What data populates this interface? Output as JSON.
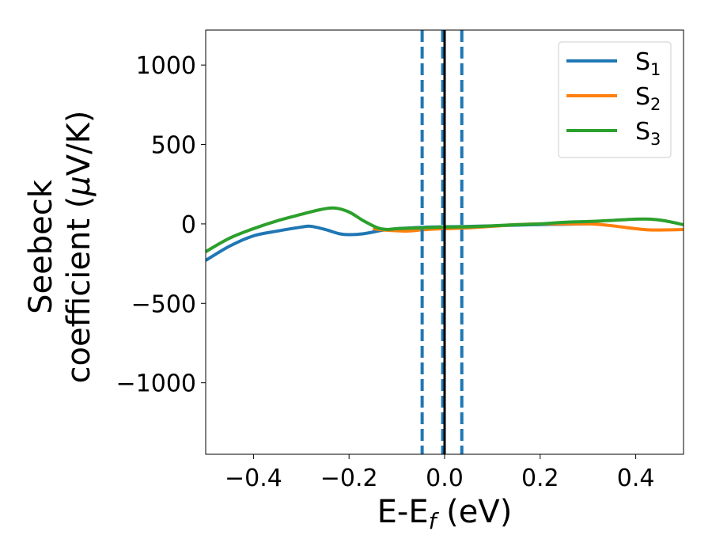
{
  "chart_data": {
    "type": "line",
    "xlabel": "E-E",
    "xlabel_sub": "f",
    "xlabel_unit": " (eV)",
    "ylabel_line1": "Seebeck",
    "ylabel_line2": "coefficient  (",
    "ylabel_mu": "μ",
    "ylabel_unit": "V/K)",
    "xlim": [
      -0.5,
      0.5
    ],
    "ylim": [
      -1450,
      1220
    ],
    "x_ticks": [
      -0.4,
      -0.2,
      0.0,
      0.2,
      0.4
    ],
    "x_tick_labels": [
      "−0.4",
      "−0.2",
      "0.0",
      "0.2",
      "0.4"
    ],
    "y_ticks": [
      1000,
      500,
      0,
      -500,
      -1000
    ],
    "y_tick_labels": [
      "1000",
      "500",
      "0",
      "−500",
      "−1000"
    ],
    "grid": false,
    "legend_position": "top-right",
    "series": [
      {
        "name": "S",
        "name_sub": "1",
        "color": "#1f77b4",
        "x": [
          -0.5,
          -0.45,
          -0.4,
          -0.35,
          -0.3,
          -0.28,
          -0.25,
          -0.22,
          -0.2,
          -0.17,
          -0.13,
          -0.1,
          -0.05,
          0.0,
          0.05,
          0.1,
          0.15,
          0.2,
          0.25,
          0.3
        ],
        "y": [
          -230,
          -140,
          -75,
          -45,
          -20,
          -15,
          -35,
          -62,
          -68,
          -62,
          -40,
          -30,
          -22,
          -18,
          -16,
          -12,
          -8,
          -4,
          -2,
          0
        ]
      },
      {
        "name": "S",
        "name_sub": "2",
        "color": "#ff7f0e",
        "x": [
          -0.15,
          -0.12,
          -0.08,
          -0.05,
          -0.02,
          0.0,
          0.05,
          0.1,
          0.15,
          0.2,
          0.25,
          0.3,
          0.33,
          0.36,
          0.4,
          0.43,
          0.46,
          0.5
        ],
        "y": [
          -30,
          -40,
          -45,
          -38,
          -32,
          -30,
          -25,
          -15,
          -5,
          0,
          0,
          0,
          -5,
          -15,
          -30,
          -38,
          -38,
          -35
        ]
      },
      {
        "name": "S",
        "name_sub": "3",
        "color": "#2ca02c",
        "x": [
          -0.5,
          -0.45,
          -0.4,
          -0.35,
          -0.3,
          -0.26,
          -0.23,
          -0.2,
          -0.17,
          -0.14,
          -0.12,
          -0.1,
          -0.05,
          0.0,
          0.05,
          0.1,
          0.15,
          0.2,
          0.25,
          0.3,
          0.35,
          0.4,
          0.43,
          0.46,
          0.5
        ],
        "y": [
          -175,
          -90,
          -30,
          20,
          60,
          90,
          100,
          75,
          20,
          -25,
          -35,
          -30,
          -25,
          -20,
          -18,
          -12,
          -5,
          0,
          10,
          15,
          22,
          30,
          30,
          20,
          -5
        ]
      }
    ],
    "vertical_lines": [
      {
        "x": -0.047,
        "color": "#1f77b4",
        "style": "dashed"
      },
      {
        "x": -0.004,
        "color": "#1f77b4",
        "style": "dashed"
      },
      {
        "x": 0.036,
        "color": "#1f77b4",
        "style": "dashed"
      },
      {
        "x": 0.0,
        "color": "#000000",
        "style": "solid"
      }
    ]
  }
}
